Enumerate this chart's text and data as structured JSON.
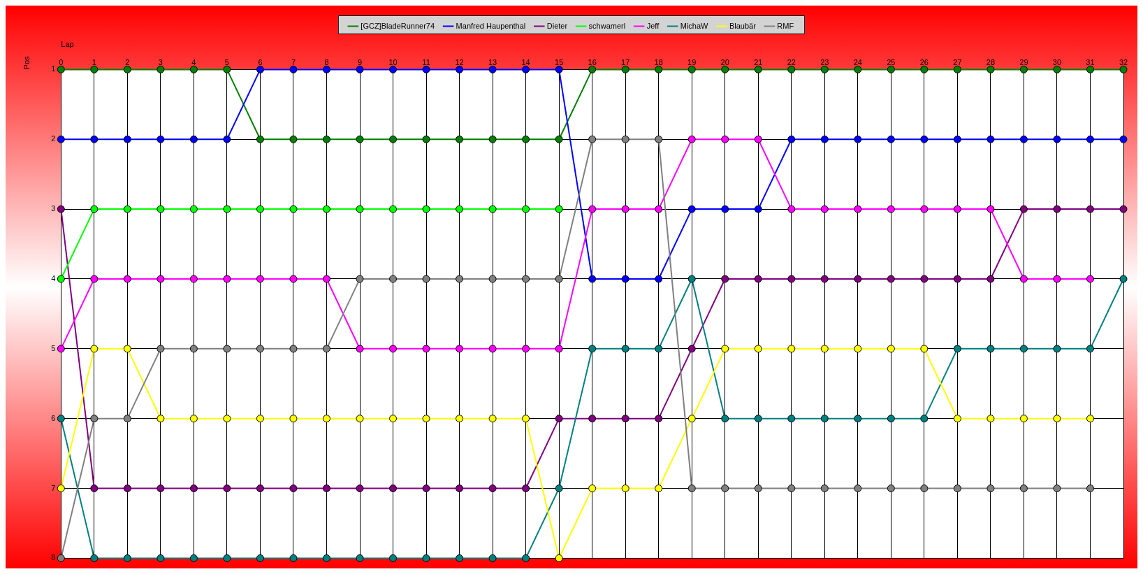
{
  "chart_data": {
    "type": "line",
    "xlabel": "Lap",
    "ylabel": "Pos",
    "x": [
      0,
      1,
      2,
      3,
      4,
      5,
      6,
      7,
      8,
      9,
      10,
      11,
      12,
      13,
      14,
      15,
      16,
      17,
      18,
      19,
      20,
      21,
      22,
      23,
      24,
      25,
      26,
      27,
      28,
      29,
      30,
      31,
      32
    ],
    "xlim": [
      0,
      32
    ],
    "xticks": [
      0,
      1,
      2,
      3,
      4,
      5,
      6,
      7,
      8,
      9,
      10,
      11,
      12,
      13,
      14,
      15,
      16,
      17,
      18,
      19,
      20,
      21,
      22,
      23,
      24,
      25,
      26,
      27,
      28,
      29,
      30,
      31,
      32
    ],
    "ylim": [
      8,
      1
    ],
    "yticks": [
      1,
      2,
      3,
      4,
      5,
      6,
      7,
      8
    ],
    "grid": true,
    "legend": "top",
    "marker": "circle",
    "line_style": "solid",
    "series": [
      {
        "name": "[GCZ]BladeRunner74",
        "color": "#008000",
        "values": [
          1,
          1,
          1,
          1,
          1,
          1,
          2,
          2,
          2,
          2,
          2,
          2,
          2,
          2,
          2,
          2,
          1,
          1,
          1,
          1,
          1,
          1,
          1,
          1,
          1,
          1,
          1,
          1,
          1,
          1,
          1,
          1,
          1
        ]
      },
      {
        "name": "Manfred Haupenthal",
        "color": "#0000ff",
        "values": [
          2,
          2,
          2,
          2,
          2,
          2,
          1,
          1,
          1,
          1,
          1,
          1,
          1,
          1,
          1,
          1,
          4,
          4,
          4,
          3,
          3,
          3,
          2,
          2,
          2,
          2,
          2,
          2,
          2,
          2,
          2,
          2,
          2
        ]
      },
      {
        "name": "Dieter",
        "color": "#800080",
        "values": [
          3,
          7,
          7,
          7,
          7,
          7,
          7,
          7,
          7,
          7,
          7,
          7,
          7,
          7,
          7,
          6,
          6,
          6,
          6,
          5,
          4,
          4,
          4,
          4,
          4,
          4,
          4,
          4,
          4,
          3,
          3,
          3,
          3
        ]
      },
      {
        "name": "schwamerl",
        "color": "#00ff00",
        "values": [
          4,
          3,
          3,
          3,
          3,
          3,
          3,
          3,
          3,
          3,
          3,
          3,
          3,
          3,
          3,
          3,
          null,
          null,
          null,
          null,
          null,
          null,
          null,
          null,
          null,
          null,
          null,
          null,
          null,
          null,
          null,
          null,
          null
        ]
      },
      {
        "name": "Jeff",
        "color": "#ff00ff",
        "values": [
          5,
          4,
          4,
          4,
          4,
          4,
          4,
          4,
          4,
          5,
          5,
          5,
          5,
          5,
          5,
          5,
          3,
          3,
          3,
          2,
          2,
          2,
          3,
          3,
          3,
          3,
          3,
          3,
          3,
          4,
          4,
          4,
          null
        ]
      },
      {
        "name": "MichaW",
        "color": "#008080",
        "values": [
          6,
          8,
          8,
          8,
          8,
          8,
          8,
          8,
          8,
          8,
          8,
          8,
          8,
          8,
          8,
          7,
          5,
          5,
          5,
          4,
          6,
          6,
          6,
          6,
          6,
          6,
          6,
          5,
          5,
          5,
          5,
          5,
          4
        ]
      },
      {
        "name": "Blaubär",
        "color": "#ffff00",
        "values": [
          7,
          5,
          5,
          6,
          6,
          6,
          6,
          6,
          6,
          6,
          6,
          6,
          6,
          6,
          6,
          8,
          7,
          7,
          7,
          6,
          5,
          5,
          5,
          5,
          5,
          5,
          5,
          6,
          6,
          6,
          6,
          6,
          null
        ]
      },
      {
        "name": "RMF",
        "color": "#808080",
        "values": [
          8,
          6,
          6,
          5,
          5,
          5,
          5,
          5,
          5,
          4,
          4,
          4,
          4,
          4,
          4,
          4,
          2,
          2,
          2,
          7,
          7,
          7,
          7,
          7,
          7,
          7,
          7,
          7,
          7,
          7,
          7,
          7,
          null
        ]
      }
    ]
  }
}
